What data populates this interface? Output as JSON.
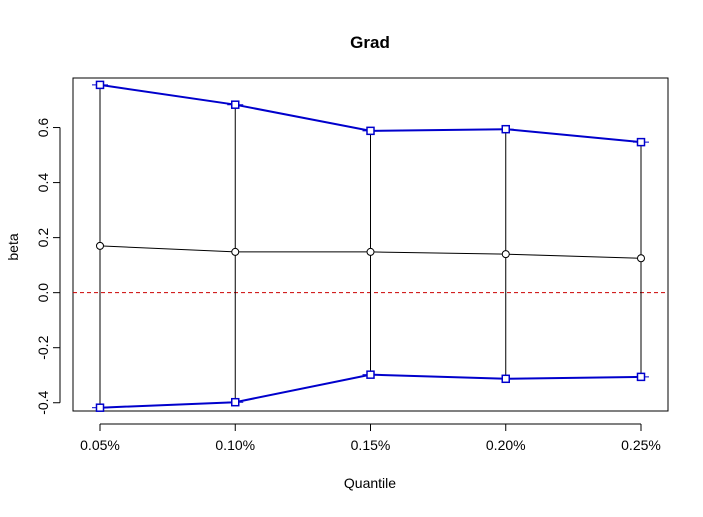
{
  "chart_data": {
    "type": "line",
    "title": "Grad",
    "xlabel": "Quantile",
    "ylabel": "beta",
    "categories": [
      "0.05%",
      "0.10%",
      "0.15%",
      "0.20%",
      "0.25%"
    ],
    "ylim": [
      -0.43,
      0.78
    ],
    "yticks": [
      -0.4,
      -0.2,
      0.0,
      0.2,
      0.4,
      0.6
    ],
    "ytick_labels": [
      "-0.4",
      "-0.2",
      "0.0",
      "0.2",
      "0.4",
      "0.6"
    ],
    "grid": false,
    "legend": "none",
    "reference_line": {
      "y": 0.0,
      "style": "dashed",
      "color": "#cc0000"
    },
    "series": [
      {
        "role": "upper",
        "color": "#0000cc",
        "marker": "square-open",
        "values": [
          0.755,
          0.683,
          0.588,
          0.594,
          0.547
        ]
      },
      {
        "role": "estimate",
        "color": "#000000",
        "marker": "circle-open",
        "values": [
          0.17,
          0.148,
          0.148,
          0.14,
          0.125
        ]
      },
      {
        "role": "lower",
        "color": "#0000cc",
        "marker": "square-open",
        "values": [
          -0.418,
          -0.398,
          -0.298,
          -0.313,
          -0.306
        ]
      }
    ]
  }
}
